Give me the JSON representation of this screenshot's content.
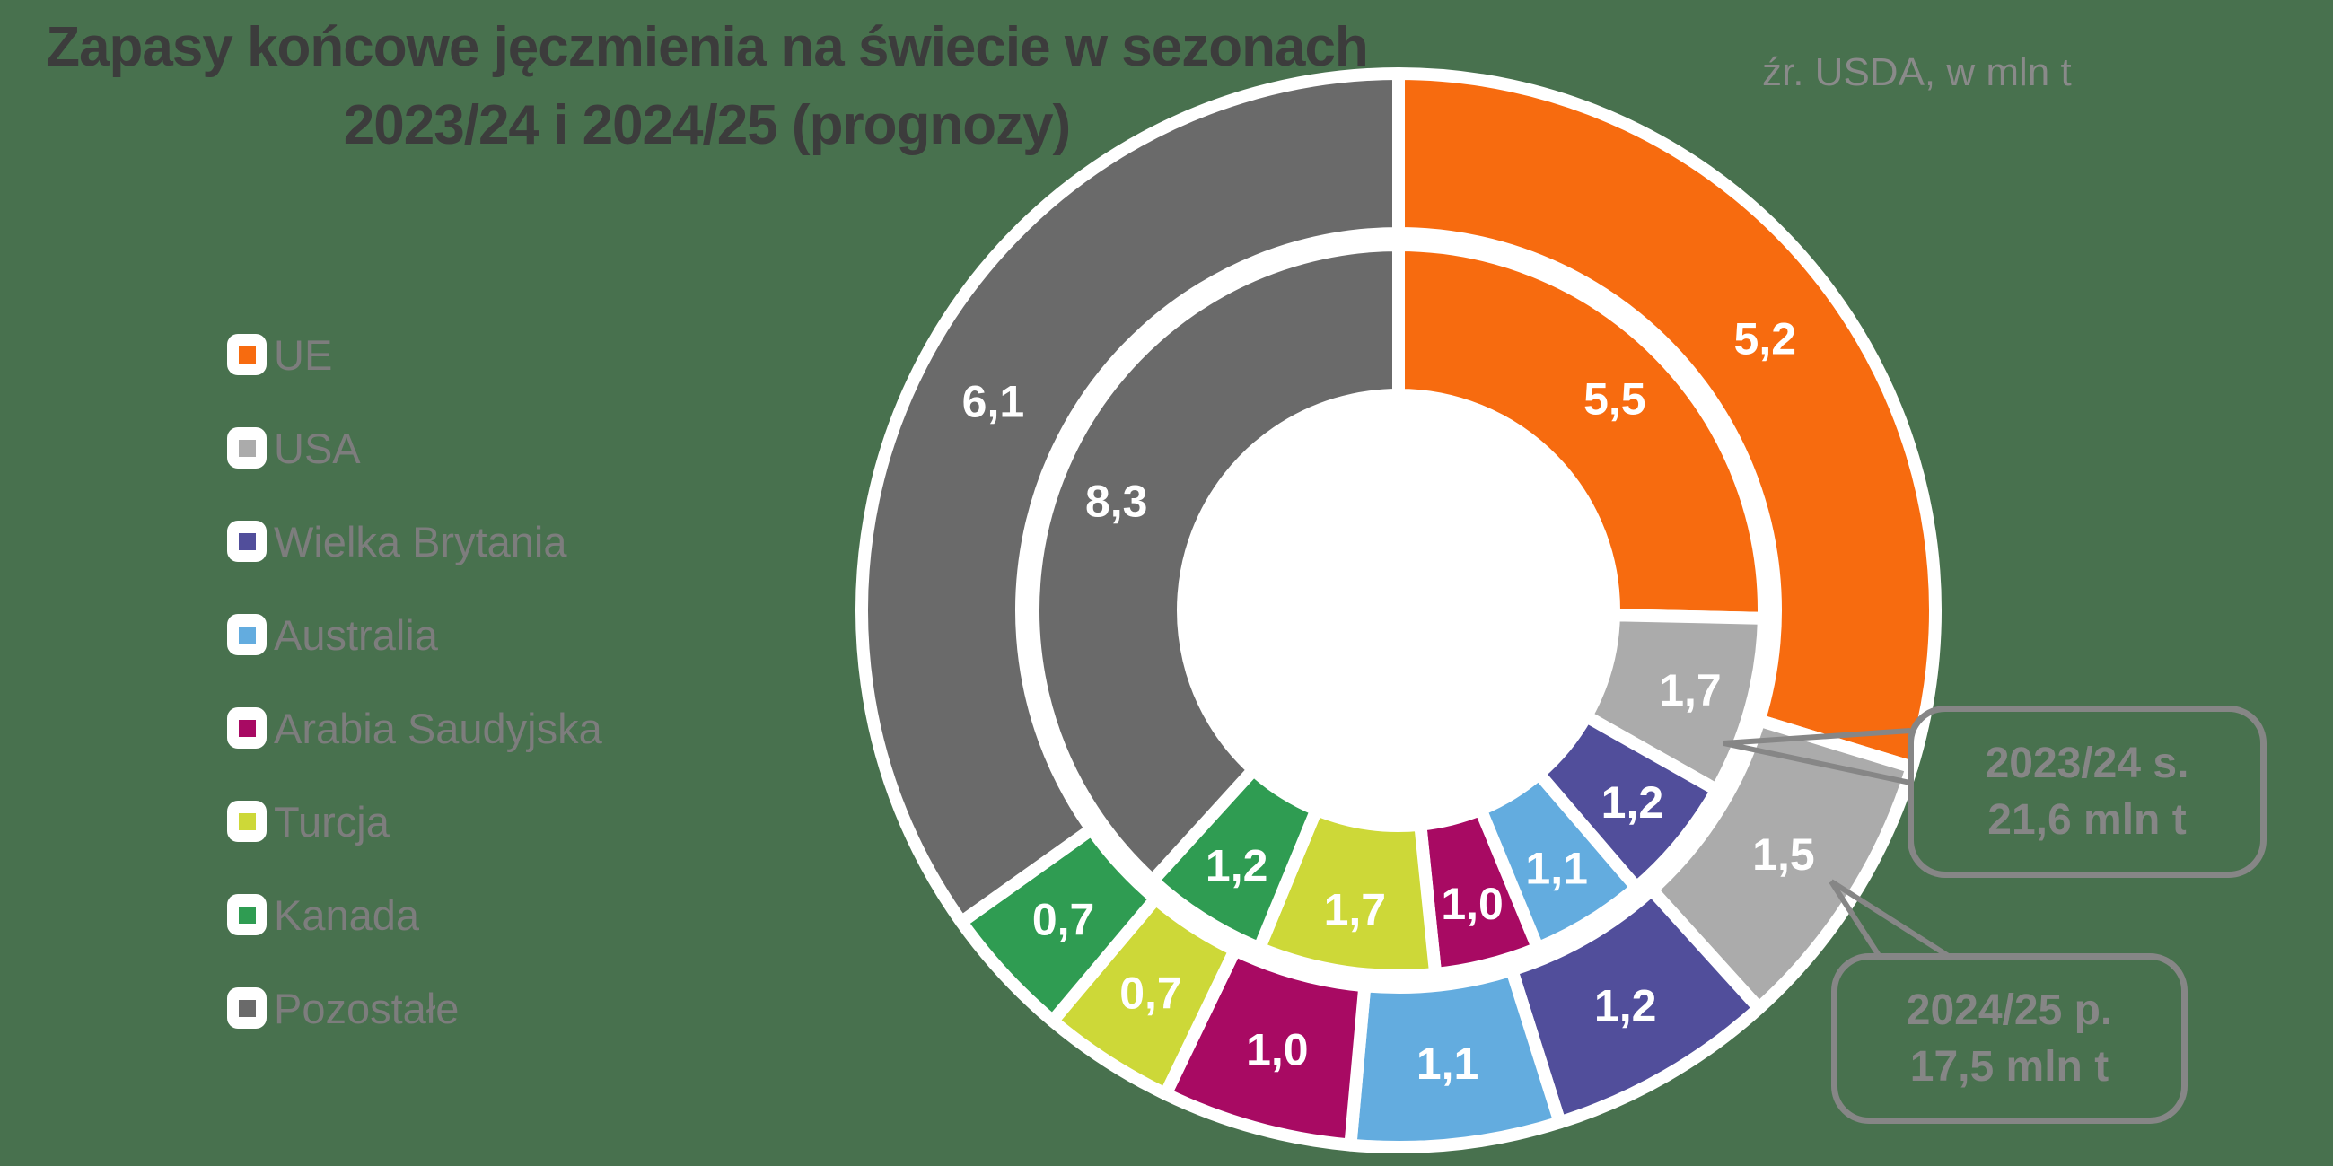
{
  "title": {
    "line1": "Zapasy końcowe jęczmienia na świecie w sezonach",
    "line2": "2023/24 i 2024/25 (prognozy)"
  },
  "source_note": "źr. USDA, w mln t",
  "legend": {
    "items": [
      {
        "label": "UE",
        "color": "#F76B0F"
      },
      {
        "label": "USA",
        "color": "#ABABAB"
      },
      {
        "label": "Wielka Brytania",
        "color": "#514E9B"
      },
      {
        "label": "Australia",
        "color": "#63ACDF"
      },
      {
        "label": "Arabia Saudyjska",
        "color": "#A80A63"
      },
      {
        "label": "Turcja",
        "color": "#CDD838"
      },
      {
        "label": "Kanada",
        "color": "#2F9C52"
      },
      {
        "label": "Pozostałe",
        "color": "#6A6A6A"
      }
    ]
  },
  "chart_data": {
    "type": "pie",
    "subtype": "nested-donut",
    "title": "Zapasy końcowe jęczmienia na świecie w sezonach 2023/24 i 2024/25 (prognozy)",
    "unit": "mln t",
    "decimal_separator": ",",
    "categories": [
      "UE",
      "USA",
      "Wielka Brytania",
      "Australia",
      "Arabia Saudyjska",
      "Turcja",
      "Kanada",
      "Pozostałe"
    ],
    "colors": [
      "#F76B0F",
      "#ABABAB",
      "#514E9B",
      "#63ACDF",
      "#A80A63",
      "#CDD838",
      "#2F9C52",
      "#6A6A6A"
    ],
    "series": [
      {
        "name": "2023/24 s.",
        "ring": "inner",
        "total": 21.6,
        "values": [
          5.5,
          1.7,
          1.2,
          1.1,
          1.0,
          1.7,
          1.2,
          8.3
        ]
      },
      {
        "name": "2024/25 p.",
        "ring": "outer",
        "total": 17.5,
        "values": [
          5.2,
          1.5,
          1.2,
          1.1,
          1.0,
          0.7,
          0.7,
          6.1
        ]
      }
    ],
    "layout_hints": {
      "start_angle_deg": 0,
      "direction": "clockwise",
      "segment_border_color": "#FFFFFF",
      "value_labels": "white, on segments"
    }
  },
  "callouts": [
    {
      "name": "2023/24 s.",
      "total": "21,6 mln t"
    },
    {
      "name": "2024/25 p.",
      "total": "17,5 mln t"
    }
  ]
}
